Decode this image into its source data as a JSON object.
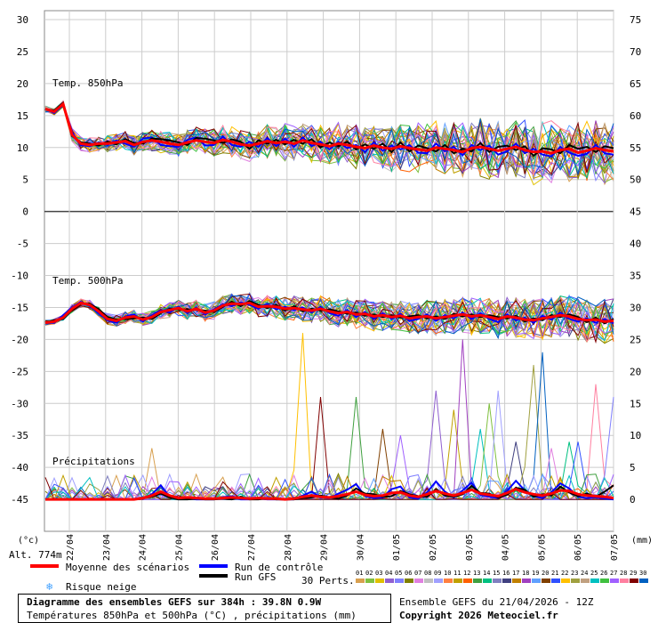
{
  "chart_data": {
    "type": "line",
    "title": "Diagramme des ensembles GEFS sur 384h : 39.8N 0.9W",
    "subtitle": "Températures 850hPa et 500hPa (°C) , précipitations (mm)",
    "run_info": "Ensemble GEFS du 21/04/2026 - 12Z",
    "copyright": "Copyright 2026 Meteociel.fr",
    "altitude": "Alt. 774m",
    "left_unit": "(°c)",
    "right_unit": "(mm)",
    "left_ticks": [
      "30",
      "25",
      "20",
      "15",
      "10",
      "5",
      "0",
      "-5",
      "-10",
      "-15",
      "-20",
      "-25",
      "-30",
      "-35",
      "-40",
      "-45"
    ],
    "right_ticks": [
      "75",
      "70",
      "65",
      "60",
      "55",
      "50",
      "45",
      "40",
      "35",
      "30",
      "25",
      "20",
      "15",
      "10",
      "5",
      "0"
    ],
    "x_labels": [
      "22/04",
      "23/04",
      "24/04",
      "25/04",
      "26/04",
      "27/04",
      "28/04",
      "29/04",
      "30/04",
      "01/05",
      "02/05",
      "03/05",
      "04/05",
      "05/05",
      "06/05",
      "07/05"
    ],
    "panel_labels": {
      "t850": "Temp. 850hPa",
      "t500": "Temp. 500hPa",
      "precip": "Précipitations"
    },
    "legend": {
      "mean": "Moyenne des scénarios",
      "control": "Run de contrôle",
      "gfs": "Run GFS",
      "snow": "Risque neige",
      "perts": "30 Perts.",
      "pert_numbers": [
        "01",
        "02",
        "03",
        "04",
        "05",
        "06",
        "07",
        "08",
        "09",
        "10",
        "11",
        "12",
        "13",
        "14",
        "15",
        "16",
        "17",
        "18",
        "19",
        "20",
        "21",
        "22",
        "23",
        "24",
        "25",
        "26",
        "27",
        "28",
        "29",
        "30"
      ]
    },
    "colors": {
      "mean": "#ff0000",
      "control": "#0000ff",
      "gfs": "#000000",
      "perts": [
        "#d8a050",
        "#80c040",
        "#e0c000",
        "#9060d0",
        "#8080ff",
        "#808000",
        "#e080e0",
        "#c0c0c0",
        "#a0a0ff",
        "#ff8040",
        "#c0a000",
        "#ff6000",
        "#40a040",
        "#00c080",
        "#8080c0",
        "#404080",
        "#c08000",
        "#a040c0",
        "#60a0ff",
        "#804000",
        "#3050ff",
        "#ffc000",
        "#a0a040",
        "#c0a080",
        "#00c0c0",
        "#40c040",
        "#a060ff",
        "#ff80a0",
        "#800000",
        "#0060c0"
      ]
    },
    "series": {
      "t850_mean": [
        16,
        15.6,
        16.8,
        12,
        10.6,
        10.4,
        10.6,
        10.6,
        10.8,
        11,
        10.4,
        10.9,
        11.1,
        10.9,
        10.6,
        10.4,
        10.8,
        11.1,
        10.9,
        10.7,
        11.2,
        10.9,
        10.5,
        10.3,
        10.6,
        11,
        10.7,
        10.9,
        10.6,
        11.1,
        10.7,
        10.5,
        10.2,
        10.6,
        10.4,
        10.1,
        9.9,
        10.3,
        10,
        9.8,
        10.2,
        9.9,
        9.7,
        9.5,
        10,
        9.8,
        9.6,
        9.3,
        9.9,
        10.1,
        9.8,
        9.5,
        9.8,
        10.1,
        9.6,
        9.3,
        9.4,
        9.1,
        9.6,
        9.8,
        9.2,
        9.5,
        9.9,
        9.6,
        9.4
      ],
      "t850_control": [
        16,
        15.4,
        16.6,
        12.4,
        10.4,
        10.2,
        10.8,
        10.4,
        11.1,
        10.6,
        10.1,
        11.4,
        11.6,
        10.4,
        10.2,
        10.1,
        11.2,
        11.6,
        10.3,
        10.4,
        11.7,
        10.4,
        10.1,
        10.9,
        10.1,
        11.5,
        10.2,
        11.4,
        10.1,
        11.6,
        10.2,
        10.9,
        9.7,
        10.9,
        9.9,
        10.4,
        9.3,
        10.8,
        9.5,
        10.3,
        9.7,
        10.4,
        9.2,
        9.1,
        10.6,
        9.4,
        10.1,
        8.8,
        10.4,
        9.6,
        10.3,
        8.9,
        9.4,
        10.6,
        9.1,
        9.8,
        8.9,
        8.6,
        10.1,
        9.2,
        8.7,
        9,
        10.4,
        9.1,
        8.9
      ],
      "t850_gfs": [
        16,
        15.8,
        17,
        11.8,
        10.8,
        10.6,
        10.3,
        10.9,
        10.5,
        11.3,
        10.7,
        10.6,
        11.4,
        11.3,
        11.1,
        10.8,
        10.4,
        11.5,
        11.4,
        11.1,
        10.7,
        11.3,
        10.9,
        9.8,
        11.1,
        10.6,
        11.2,
        10.5,
        11.2,
        10.6,
        11.3,
        10,
        10.8,
        10.2,
        10.9,
        9.7,
        10.5,
        9.8,
        10.6,
        9.3,
        10.8,
        9.4,
        10.3,
        9.9,
        9.4,
        10.4,
        9.1,
        9.8,
        9.4,
        10.7,
        9.3,
        10.1,
        10.3,
        9.6,
        10.2,
        8.7,
        9.9,
        9.7,
        9.1,
        10.4,
        9.8,
        10.1,
        9.3,
        10.2,
        9.9
      ],
      "t500_mean": [
        -17.4,
        -17.2,
        -16.6,
        -15.2,
        -14.3,
        -14.6,
        -15.6,
        -16.8,
        -17.1,
        -16.6,
        -16.4,
        -16.9,
        -16.5,
        -15.7,
        -15.4,
        -15.1,
        -15.6,
        -15.2,
        -15.8,
        -15.5,
        -14.7,
        -14.4,
        -14.5,
        -14.3,
        -14.9,
        -14.8,
        -14.9,
        -15.2,
        -15.1,
        -15.3,
        -15.5,
        -15.2,
        -15.6,
        -15.9,
        -15.7,
        -16.1,
        -16,
        -16.4,
        -16.2,
        -16.5,
        -16.3,
        -16.7,
        -16.5,
        -16.4,
        -16.7,
        -16.5,
        -16.3,
        -16.1,
        -16.4,
        -16.2,
        -16.5,
        -16.8,
        -16.4,
        -16.6,
        -16.9,
        -17,
        -16.7,
        -16.5,
        -16.2,
        -16.4,
        -16.8,
        -17,
        -16.9,
        -17.2,
        -17.1
      ],
      "t500_control": [
        -17.4,
        -17.4,
        -16.2,
        -15,
        -14.1,
        -14.8,
        -15.9,
        -17,
        -17.4,
        -16.4,
        -16.1,
        -17.2,
        -16.2,
        -15.5,
        -15.8,
        -14.9,
        -15.9,
        -15,
        -16.1,
        -15.3,
        -14.5,
        -14.8,
        -14.2,
        -14.6,
        -15.2,
        -14.5,
        -15.3,
        -14.9,
        -15.4,
        -15,
        -15.8,
        -14.9,
        -15.9,
        -16.3,
        -15.4,
        -16.5,
        -15.7,
        -16.8,
        -15.9,
        -16.8,
        -16,
        -17.1,
        -16.8,
        -16.1,
        -17.1,
        -16.2,
        -16.7,
        -15.8,
        -16.8,
        -15.9,
        -16.8,
        -17.3,
        -16.1,
        -17,
        -16.6,
        -17.4,
        -16.3,
        -16.9,
        -15.8,
        -16.8,
        -17.2,
        -16.7,
        -17.4,
        -16.8,
        -17.5
      ],
      "t500_gfs": [
        -17.4,
        -17,
        -16.8,
        -15.4,
        -14.5,
        -14.4,
        -15.3,
        -16.5,
        -16.9,
        -16.8,
        -16.7,
        -16.6,
        -16.8,
        -15.9,
        -15.2,
        -15.3,
        -15.3,
        -15.4,
        -15.5,
        -15.7,
        -14.9,
        -14.1,
        -14.8,
        -14,
        -14.6,
        -15.1,
        -14.6,
        -15.5,
        -14.8,
        -15.6,
        -15.2,
        -15.5,
        -15.3,
        -15.6,
        -16,
        -15.8,
        -16.3,
        -16.1,
        -16.5,
        -16.2,
        -16.6,
        -16.4,
        -16.2,
        -16.7,
        -16.4,
        -16.8,
        -16,
        -16.4,
        -16.1,
        -16.5,
        -16.2,
        -16.5,
        -16.7,
        -16.3,
        -17.2,
        -16.7,
        -17,
        -16.2,
        -16.5,
        -16.1,
        -16.5,
        -17.3,
        -16.6,
        -17.5,
        -16.8
      ],
      "precip_mean": [
        0,
        0,
        0,
        0,
        0,
        0,
        0,
        0,
        0,
        0,
        0,
        0.2,
        0.6,
        1.2,
        0.6,
        0.2,
        0.3,
        0.2,
        0.1,
        0.1,
        0.2,
        0.3,
        0.2,
        0.1,
        0.2,
        0.1,
        0.1,
        0,
        0.1,
        0.4,
        0.6,
        0.4,
        0.3,
        0.5,
        0.8,
        1.2,
        0.7,
        0.5,
        0.6,
        1,
        1.1,
        0.6,
        0.4,
        0.8,
        1.3,
        0.9,
        0.6,
        1,
        1.5,
        0.9,
        0.7,
        0.5,
        1,
        1.6,
        1.1,
        0.8,
        0.6,
        0.9,
        1.4,
        1.3,
        0.8,
        0.6,
        0.5,
        0.4,
        0.2
      ],
      "precip_control": [
        0,
        0,
        0,
        0,
        0,
        0,
        0,
        0,
        0,
        0,
        0,
        0.1,
        0.8,
        2.2,
        0.4,
        0,
        0.2,
        0,
        0,
        0,
        0.3,
        0.5,
        0,
        0,
        0.1,
        0,
        0,
        0,
        0,
        0.6,
        1.2,
        0.3,
        0.2,
        0.9,
        1.5,
        2.4,
        0.5,
        0.2,
        0.3,
        1.6,
        2,
        0.3,
        0.1,
        1.1,
        2.8,
        1.2,
        0.3,
        1.4,
        2.6,
        0.7,
        0.4,
        0.2,
        1.3,
        2.9,
        1.4,
        0.5,
        0.2,
        1.1,
        2.5,
        1.7,
        0.4,
        0.2,
        0.3,
        0.1,
        0
      ],
      "precip_gfs": [
        0,
        0,
        0,
        0,
        0,
        0,
        0,
        0,
        0,
        0,
        0,
        0.2,
        0.4,
        0.9,
        0.3,
        0,
        0,
        0.1,
        0,
        0,
        0.1,
        0,
        0.4,
        0,
        0,
        0.2,
        0,
        0,
        0,
        0.2,
        0.3,
        0.6,
        0.3,
        0.1,
        0.6,
        1.7,
        0.9,
        0.8,
        0.4,
        0.5,
        1.3,
        0.8,
        0.5,
        0.4,
        1.6,
        0.6,
        0.4,
        0.8,
        2.1,
        1,
        0.9,
        0.3,
        0.7,
        1.8,
        1.5,
        0.4,
        0.8,
        0.6,
        2,
        1.1,
        0.5,
        0.9,
        0.4,
        1.2,
        2.2
      ],
      "precip_peaks": [
        [
          12,
          8
        ],
        [
          16,
          2.5
        ],
        [
          20,
          2
        ],
        [
          29,
          26
        ],
        [
          31,
          16
        ],
        [
          33,
          4
        ],
        [
          35,
          16
        ],
        [
          38,
          11
        ],
        [
          40,
          10
        ],
        [
          44,
          17
        ],
        [
          46,
          14
        ],
        [
          47,
          25
        ],
        [
          49,
          11
        ],
        [
          50,
          15
        ],
        [
          51,
          17
        ],
        [
          53,
          9
        ],
        [
          55,
          21
        ],
        [
          56,
          23
        ],
        [
          57,
          8
        ],
        [
          59,
          9
        ],
        [
          60,
          9
        ],
        [
          62,
          18
        ],
        [
          64,
          16
        ],
        [
          65,
          10
        ]
      ]
    },
    "series_names": [
      "Moyenne des scénarios",
      "Run de contrôle",
      "Run GFS"
    ]
  }
}
